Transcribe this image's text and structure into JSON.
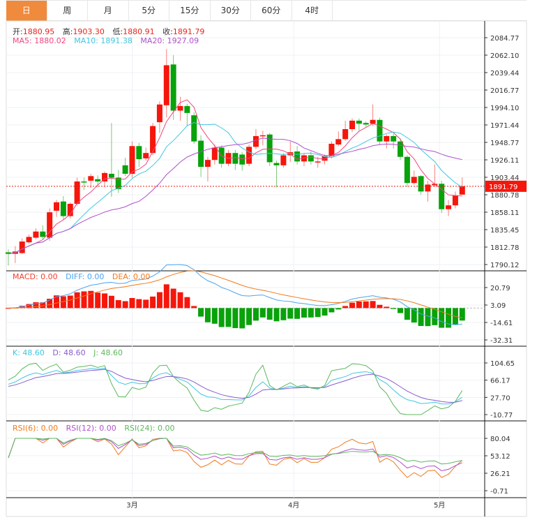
{
  "tabs": [
    {
      "label": "日",
      "active": true
    },
    {
      "label": "周",
      "active": false
    },
    {
      "label": "月",
      "active": false
    },
    {
      "label": "5分",
      "active": false
    },
    {
      "label": "15分",
      "active": false
    },
    {
      "label": "30分",
      "active": false
    },
    {
      "label": "60分",
      "active": false
    },
    {
      "label": "4时",
      "active": false
    }
  ],
  "ohlc_legend": {
    "open_label": "开:",
    "open": "1880.95",
    "high_label": "高:",
    "high": "1903.30",
    "low_label": "低:",
    "low": "1880.91",
    "close_label": "收:",
    "close": "1891.79"
  },
  "ma_legend": {
    "ma5": "MA5: 1880.02",
    "ma10": "MA10: 1891.38",
    "ma20": "MA20: 1927.09"
  },
  "macd_legend": {
    "macd": "MACD: 0.00",
    "diff": "DIFF: 0.00",
    "dea": "DEA: 0.00"
  },
  "kdj_legend": {
    "k": "K: 48.60",
    "d": "D: 48.60",
    "j": "J: 48.60"
  },
  "rsi_legend": {
    "rsi6": "RSI(6): 0.00",
    "rsi12": "RSI(12): 0.00",
    "rsi24": "RSI(24): 0.00"
  },
  "current_price": "1891.79",
  "colors": {
    "up": "#f5160c",
    "down": "#08a20a",
    "ma5": "#f0467f",
    "ma10": "#3fc6e0",
    "ma20": "#b04fcc",
    "diff": "#4aa3f0",
    "dea": "#f07a1c",
    "accent": "#f08a3c"
  },
  "chart_data": {
    "type": "candlestick",
    "x_labels": [
      {
        "label": "3月",
        "index": 18
      },
      {
        "label": "4月",
        "index": 41.5
      },
      {
        "label": "5月",
        "index": 62.7
      }
    ],
    "main_panel": {
      "axis_labels": [
        "2084.77",
        "2062.10",
        "2039.44",
        "2016.77",
        "1994.10",
        "1971.44",
        "1948.77",
        "1926.11",
        "1903.44",
        "1880.78",
        "1858.11",
        "1835.45",
        "1812.78",
        "1790.12"
      ],
      "ylim": [
        1790.12,
        2084.77
      ]
    },
    "macd_panel": {
      "axis_labels": [
        "20.79",
        "3.09",
        "-14.61",
        "-32.31"
      ],
      "ylim": [
        -32.31,
        20.79
      ]
    },
    "kdj_panel": {
      "axis_labels": [
        "104.65",
        "66.17",
        "27.70",
        "-10.77"
      ],
      "ylim": [
        -10.77,
        104.65
      ]
    },
    "rsi_panel": {
      "axis_labels": [
        "80.04",
        "53.12",
        "26.21",
        "-0.71"
      ],
      "ylim": [
        -0.71,
        80.04
      ]
    },
    "candles": [
      [
        1806,
        1810,
        1789,
        1804
      ],
      [
        1804,
        1814,
        1792,
        1807
      ],
      [
        1805,
        1824,
        1804,
        1820
      ],
      [
        1819,
        1829,
        1817,
        1826
      ],
      [
        1825,
        1837,
        1823,
        1833
      ],
      [
        1833,
        1841,
        1823,
        1826
      ],
      [
        1825,
        1863,
        1821,
        1858
      ],
      [
        1860,
        1874,
        1852,
        1871
      ],
      [
        1872,
        1879,
        1848,
        1853
      ],
      [
        1853,
        1871,
        1850,
        1869
      ],
      [
        1869,
        1903,
        1867,
        1898
      ],
      [
        1898,
        1903,
        1887,
        1897
      ],
      [
        1899,
        1908,
        1890,
        1905
      ],
      [
        1901,
        1906,
        1891,
        1898
      ],
      [
        1898,
        1911,
        1891,
        1909
      ],
      [
        1908,
        1974,
        1878,
        1903
      ],
      [
        1903,
        1913,
        1883,
        1888
      ],
      [
        1919,
        1929,
        1905,
        1908
      ],
      [
        1908,
        1950,
        1903,
        1944
      ],
      [
        1944,
        1948,
        1917,
        1927
      ],
      [
        1928,
        1942,
        1925,
        1935
      ],
      [
        1935,
        1974,
        1932,
        1970
      ],
      [
        1975,
        2002,
        1961,
        1998
      ],
      [
        1997,
        2070,
        1981,
        2049
      ],
      [
        2050,
        2062,
        1978,
        1990
      ],
      [
        1990,
        2008,
        1977,
        1996
      ],
      [
        1996,
        1999,
        1970,
        1987
      ],
      [
        1984,
        1988,
        1947,
        1950
      ],
      [
        1951,
        1958,
        1904,
        1917
      ],
      [
        1917,
        1930,
        1898,
        1926
      ],
      [
        1926,
        1946,
        1920,
        1942
      ],
      [
        1942,
        1945,
        1916,
        1921
      ],
      [
        1921,
        1939,
        1918,
        1935
      ],
      [
        1935,
        1939,
        1913,
        1921
      ],
      [
        1933,
        1936,
        1912,
        1920
      ],
      [
        1921,
        1946,
        1918,
        1943
      ],
      [
        1943,
        1966,
        1940,
        1957
      ],
      [
        1957,
        1964,
        1945,
        1958
      ],
      [
        1959,
        1961,
        1918,
        1923
      ],
      [
        1922,
        1925,
        1890,
        1919
      ],
      [
        1919,
        1935,
        1916,
        1932
      ],
      [
        1932,
        1950,
        1923,
        1936
      ],
      [
        1937,
        1944,
        1920,
        1924
      ],
      [
        1924,
        1935,
        1918,
        1932
      ],
      [
        1932,
        1937,
        1920,
        1924
      ],
      [
        1923,
        1930,
        1916,
        1924
      ],
      [
        1925,
        1933,
        1920,
        1931
      ],
      [
        1931,
        1950,
        1928,
        1947
      ],
      [
        1946,
        1963,
        1944,
        1953
      ],
      [
        1953,
        1977,
        1951,
        1966
      ],
      [
        1966,
        1980,
        1962,
        1977
      ],
      [
        1977,
        1980,
        1964,
        1973
      ],
      [
        1974,
        1976,
        1969,
        1972
      ],
      [
        1973,
        1998,
        1970,
        1978
      ],
      [
        1978,
        1981,
        1945,
        1950
      ],
      [
        1950,
        1959,
        1941,
        1957
      ],
      [
        1957,
        1960,
        1941,
        1950
      ],
      [
        1950,
        1954,
        1926,
        1930
      ],
      [
        1930,
        1932,
        1891,
        1896
      ],
      [
        1896,
        1912,
        1894,
        1904
      ],
      [
        1905,
        1906,
        1881,
        1885
      ],
      [
        1885,
        1899,
        1872,
        1894
      ],
      [
        1893,
        1920,
        1891,
        1895
      ],
      [
        1895,
        1899,
        1857,
        1862
      ],
      [
        1862,
        1874,
        1853,
        1867
      ],
      [
        1867,
        1885,
        1863,
        1880
      ],
      [
        1880.95,
        1903.3,
        1880.91,
        1891.79
      ]
    ]
  }
}
